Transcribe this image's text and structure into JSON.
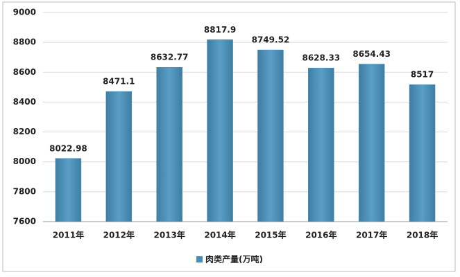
{
  "chart_data": {
    "type": "bar",
    "categories": [
      "2011年",
      "2012年",
      "2013年",
      "2014年",
      "2015年",
      "2016年",
      "2017年",
      "2018年"
    ],
    "series": [
      {
        "name": "肉类产量(万吨)",
        "color": "#4a8db5",
        "values": [
          8022.98,
          8471.1,
          8632.77,
          8817.9,
          8749.52,
          8628.33,
          8654.43,
          8517
        ]
      }
    ],
    "ylim": [
      7600,
      9000
    ],
    "yticks": [
      7600,
      7800,
      8000,
      8200,
      8400,
      8600,
      8800,
      9000
    ],
    "grid": true,
    "legend": "bottom",
    "data_labels": true
  }
}
